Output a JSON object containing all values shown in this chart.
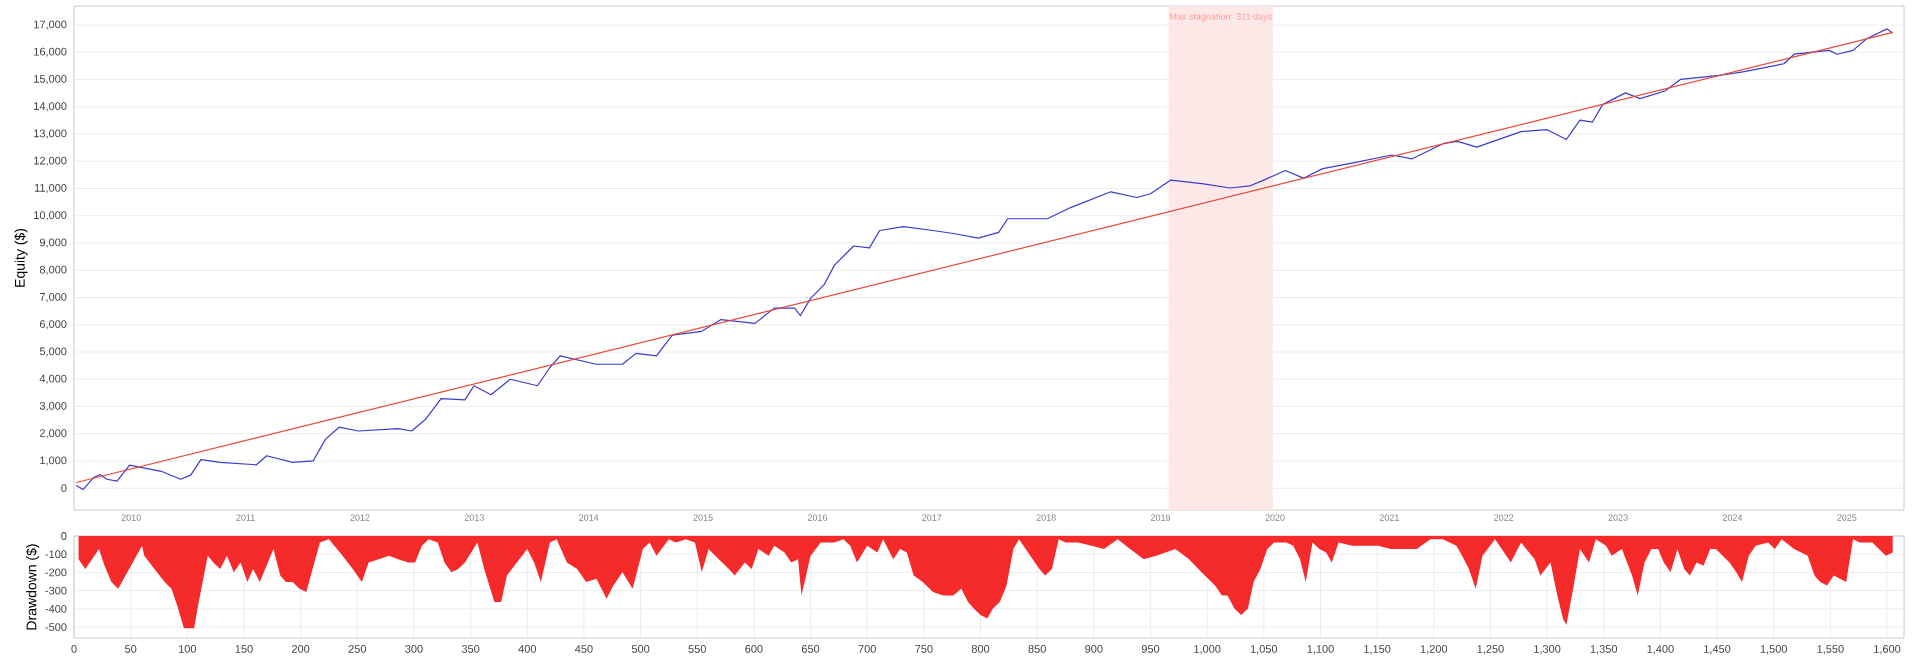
{
  "chart_data": [
    {
      "type": "line",
      "ylabel": "Equity ($)",
      "xlim": [
        0,
        1615
      ],
      "ylim": [
        -800,
        17700
      ],
      "grid": "y",
      "tick_labels": "y",
      "yticks": [
        0,
        {
          "value": 1000,
          "label": "1,000"
        },
        {
          "value": 2000,
          "label": "2,000"
        },
        {
          "value": 3000,
          "label": "3,000"
        },
        {
          "value": 4000,
          "label": "4,000"
        },
        {
          "value": 5000,
          "label": "5,000"
        },
        {
          "value": 6000,
          "label": "6,000"
        },
        {
          "value": 7000,
          "label": "7,000"
        },
        {
          "value": 8000,
          "label": "8,000"
        },
        {
          "value": 9000,
          "label": "9,000"
        },
        {
          "value": 10000,
          "label": "10,000"
        },
        {
          "value": 11000,
          "label": "11,000"
        },
        {
          "value": 12000,
          "label": "12,000"
        },
        {
          "value": 13000,
          "label": "13,000"
        },
        {
          "value": 14000,
          "label": "14,000"
        },
        {
          "value": 15000,
          "label": "15,000"
        },
        {
          "value": 16000,
          "label": "16,000"
        },
        {
          "value": 17000,
          "label": "17,000"
        }
      ],
      "bands": [
        {
          "axis": "x",
          "from": 966,
          "to": 1058,
          "label": "Max stagnation: 311 days",
          "color": "#fde8e8"
        }
      ],
      "annotations": [
        "2010",
        "2011",
        "2012",
        "2013",
        "2014",
        "2015",
        "2016",
        "2017",
        "2018",
        "2019",
        "2020",
        "2021",
        "2022",
        "2023",
        "2024",
        "2025"
      ],
      "series": [
        {
          "color": "#3b3bd0",
          "x": [
            2,
            8,
            17,
            23,
            29,
            38,
            49,
            77,
            94,
            103,
            112,
            129,
            161,
            170,
            193,
            211,
            222,
            234,
            251,
            286,
            298,
            310,
            324,
            345,
            353,
            368,
            385,
            409,
            420,
            429,
            461,
            484,
            496,
            514,
            528,
            554,
            571,
            601,
            618,
            636,
            641,
            650,
            662,
            671,
            688,
            702,
            711,
            732,
            758,
            776,
            798,
            816,
            824,
            845,
            859,
            880,
            915,
            938,
            950,
            968,
            997,
            1020,
            1038,
            1050,
            1069,
            1085,
            1102,
            1130,
            1163,
            1181,
            1209,
            1221,
            1238,
            1277,
            1300,
            1317,
            1329,
            1340,
            1349,
            1369,
            1382,
            1404,
            1418,
            1452,
            1474,
            1509,
            1518,
            1549,
            1556,
            1570,
            1582,
            1600,
            1605
          ],
          "values": [
            100,
            -50,
            380,
            500,
            330,
            260,
            850,
            620,
            330,
            480,
            1050,
            950,
            860,
            1190,
            950,
            1000,
            1800,
            2240,
            2100,
            2190,
            2100,
            2520,
            3290,
            3240,
            3760,
            3430,
            4000,
            3760,
            4430,
            4860,
            4550,
            4550,
            4950,
            4860,
            5620,
            5760,
            6190,
            6050,
            6610,
            6610,
            6330,
            6970,
            7470,
            8180,
            8890,
            8820,
            9460,
            9600,
            9460,
            9350,
            9180,
            9390,
            9890,
            9890,
            9890,
            10310,
            10880,
            10670,
            10810,
            11310,
            11170,
            11020,
            11100,
            11310,
            11660,
            11380,
            11730,
            11950,
            12230,
            12090,
            12660,
            12730,
            12520,
            13090,
            13160,
            12800,
            13510,
            13440,
            14080,
            14510,
            14300,
            14580,
            15010,
            15150,
            15290,
            15580,
            15930,
            16070,
            15930,
            16070,
            16500,
            16860,
            16710
          ]
        },
        {
          "color": "#e84a3a",
          "x": [
            2,
            1605
          ],
          "values": [
            210,
            16730
          ]
        }
      ]
    },
    {
      "type": "area",
      "ylabel": "Drawdown ($)",
      "xlim": [
        0,
        1615
      ],
      "ylim": [
        -560,
        0
      ],
      "grid": true,
      "xticks": [
        0,
        50,
        100,
        150,
        200,
        250,
        300,
        350,
        400,
        450,
        500,
        550,
        600,
        650,
        700,
        750,
        800,
        850,
        900,
        950,
        {
          "value": 1000,
          "label": "1,000"
        },
        {
          "value": 1050,
          "label": "1,050"
        },
        {
          "value": 1100,
          "label": "1,100"
        },
        {
          "value": 1150,
          "label": "1,150"
        },
        {
          "value": 1200,
          "label": "1,200"
        },
        {
          "value": 1250,
          "label": "1,250"
        },
        {
          "value": 1300,
          "label": "1,300"
        },
        {
          "value": 1350,
          "label": "1,350"
        },
        {
          "value": 1400,
          "label": "1,400"
        },
        {
          "value": 1450,
          "label": "1,450"
        },
        {
          "value": 1500,
          "label": "1,500"
        },
        {
          "value": 1550,
          "label": "1,550"
        },
        {
          "value": 1600,
          "label": "1,600"
        }
      ],
      "yticks": [
        0,
        -100,
        -200,
        -300,
        -400,
        -500
      ],
      "series": [
        {
          "color": "#f52a2a",
          "x": [
            4,
            10,
            22,
            27,
            33,
            39,
            60,
            62,
            71,
            80,
            86,
            91,
            97,
            106,
            109,
            118,
            123,
            129,
            135,
            141,
            147,
            153,
            158,
            164,
            176,
            182,
            187,
            193,
            199,
            205,
            217,
            225,
            237,
            246,
            254,
            260,
            269,
            278,
            286,
            295,
            301,
            307,
            313,
            321,
            327,
            333,
            339,
            345,
            356,
            362,
            371,
            377,
            382,
            400,
            406,
            412,
            420,
            426,
            435,
            444,
            452,
            461,
            470,
            476,
            484,
            493,
            502,
            508,
            514,
            525,
            531,
            540,
            548,
            554,
            560,
            569,
            578,
            583,
            592,
            598,
            604,
            613,
            618,
            627,
            633,
            639,
            642,
            650,
            659,
            671,
            679,
            685,
            691,
            700,
            709,
            714,
            723,
            729,
            735,
            741,
            749,
            758,
            767,
            776,
            783,
            789,
            794,
            800,
            806,
            811,
            817,
            823,
            829,
            834,
            846,
            852,
            857,
            863,
            869,
            875,
            886,
            898,
            909,
            921,
            932,
            944,
            955,
            972,
            984,
            995,
            1007,
            1013,
            1018,
            1024,
            1030,
            1036,
            1041,
            1047,
            1053,
            1059,
            1070,
            1076,
            1082,
            1087,
            1093,
            1099,
            1105,
            1110,
            1116,
            1128,
            1139,
            1151,
            1162,
            1174,
            1185,
            1197,
            1208,
            1220,
            1225,
            1231,
            1237,
            1243,
            1254,
            1260,
            1268,
            1277,
            1289,
            1294,
            1303,
            1309,
            1314,
            1317,
            1323,
            1329,
            1337,
            1343,
            1352,
            1357,
            1366,
            1375,
            1380,
            1386,
            1392,
            1398,
            1403,
            1409,
            1415,
            1421,
            1426,
            1432,
            1438,
            1444,
            1449,
            1461,
            1467,
            1472,
            1478,
            1484,
            1495,
            1501,
            1507,
            1518,
            1530,
            1536,
            1541,
            1547,
            1553,
            1564,
            1570,
            1576,
            1587,
            1599,
            1605
          ],
          "values": [
            -127,
            -181,
            -72,
            -163,
            -253,
            -290,
            -54,
            -109,
            -181,
            -253,
            -290,
            -380,
            -507,
            -507,
            -398,
            -109,
            -145,
            -181,
            -109,
            -199,
            -145,
            -253,
            -181,
            -253,
            -72,
            -217,
            -253,
            -253,
            -290,
            -308,
            -36,
            -18,
            -109,
            -181,
            -253,
            -145,
            -127,
            -109,
            -127,
            -145,
            -145,
            -54,
            -18,
            -36,
            -145,
            -199,
            -181,
            -145,
            -36,
            -181,
            -362,
            -362,
            -217,
            -72,
            -145,
            -253,
            -36,
            -18,
            -145,
            -181,
            -253,
            -235,
            -344,
            -272,
            -199,
            -290,
            -72,
            -36,
            -109,
            -18,
            -36,
            -18,
            -36,
            -199,
            -72,
            -127,
            -181,
            -217,
            -145,
            -181,
            -72,
            -109,
            -54,
            -91,
            -145,
            -127,
            -326,
            -109,
            -36,
            -36,
            -18,
            -54,
            -145,
            -54,
            -91,
            -18,
            -127,
            -72,
            -91,
            -217,
            -253,
            -308,
            -326,
            -326,
            -290,
            -362,
            -398,
            -434,
            -453,
            -398,
            -362,
            -272,
            -72,
            -18,
            -127,
            -181,
            -217,
            -181,
            -18,
            -36,
            -36,
            -54,
            -72,
            -18,
            -72,
            -127,
            -109,
            -72,
            -127,
            -199,
            -272,
            -326,
            -326,
            -398,
            -434,
            -398,
            -253,
            -181,
            -72,
            -36,
            -36,
            -54,
            -127,
            -253,
            -36,
            -72,
            -91,
            -145,
            -36,
            -54,
            -54,
            -54,
            -72,
            -72,
            -72,
            -18,
            -18,
            -54,
            -109,
            -181,
            -290,
            -109,
            -18,
            -72,
            -145,
            -36,
            -127,
            -217,
            -145,
            -326,
            -453,
            -489,
            -290,
            -72,
            -145,
            -18,
            -54,
            -109,
            -72,
            -217,
            -326,
            -145,
            -72,
            -72,
            -145,
            -199,
            -72,
            -181,
            -217,
            -145,
            -163,
            -72,
            -72,
            -145,
            -199,
            -253,
            -109,
            -54,
            -36,
            -72,
            -18,
            -72,
            -109,
            -217,
            -253,
            -272,
            -217,
            -253,
            -18,
            -36,
            -36,
            -109,
            -91
          ]
        }
      ]
    }
  ]
}
